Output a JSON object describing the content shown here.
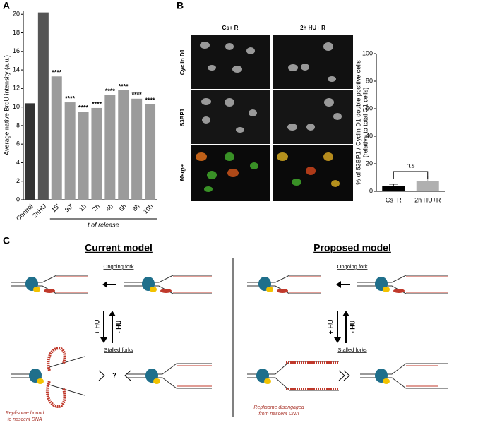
{
  "panels": {
    "a": "A",
    "b": "B",
    "c": "C"
  },
  "chart_data": [
    {
      "type": "bar",
      "ylabel": "Average native BrdU intensity (a.u.)",
      "xgroup_label": "t of release",
      "categories": [
        "Control",
        "2hHU",
        "15'",
        "30'",
        "1h",
        "2h",
        "4h",
        "6h",
        "8h",
        "10h"
      ],
      "values": [
        10.4,
        20.2,
        13.3,
        10.5,
        9.5,
        9.9,
        11.3,
        11.8,
        10.9,
        10.3
      ],
      "colors": [
        "#333333",
        "#555555",
        "#9b9b9b",
        "#9b9b9b",
        "#9b9b9b",
        "#9b9b9b",
        "#9b9b9b",
        "#9b9b9b",
        "#9b9b9b",
        "#9b9b9b"
      ],
      "annotations": [
        null,
        null,
        "****",
        "****",
        "****",
        "****",
        "****",
        "****",
        "****",
        "****"
      ],
      "ylim": [
        0,
        20.4
      ],
      "yticks": [
        0,
        2,
        4,
        6,
        8,
        10,
        12,
        14,
        16,
        18,
        20
      ]
    },
    {
      "type": "bar",
      "ylabel": [
        "% of 53BP1 / Cyclin D1 double positive cells",
        "(relative to total G1 cells)"
      ],
      "categories": [
        "Cs+R",
        "2h HU+R"
      ],
      "values": [
        4,
        7.5
      ],
      "errors": [
        1.2,
        3.5
      ],
      "colors": [
        "#000000",
        "#b0b0b0"
      ],
      "annotation": "n.s",
      "ylim": [
        0,
        100
      ],
      "yticks": [
        0,
        20,
        40,
        60,
        80,
        100
      ]
    }
  ],
  "images": {
    "columns": [
      "Cs+ R",
      "2h HU+ R"
    ],
    "rows": [
      "Cyclin D1",
      "53BP1",
      "Merge"
    ]
  },
  "diagram": {
    "current": {
      "title": "Current model",
      "ongoing": "Ongoing fork",
      "plus_hu": "+ HU",
      "minus_hu": "- HU",
      "stalled": "Stalled forks",
      "question": "?",
      "note": [
        "Replisome bound",
        "to nascent DNA"
      ]
    },
    "proposed": {
      "title": "Proposed model",
      "ongoing": "Ongoing fork",
      "plus_hu": "+ HU",
      "minus_hu": "- HU",
      "stalled": "Stalled forks",
      "note": [
        "Replisome disengaged",
        "from nascent DNA"
      ]
    }
  }
}
